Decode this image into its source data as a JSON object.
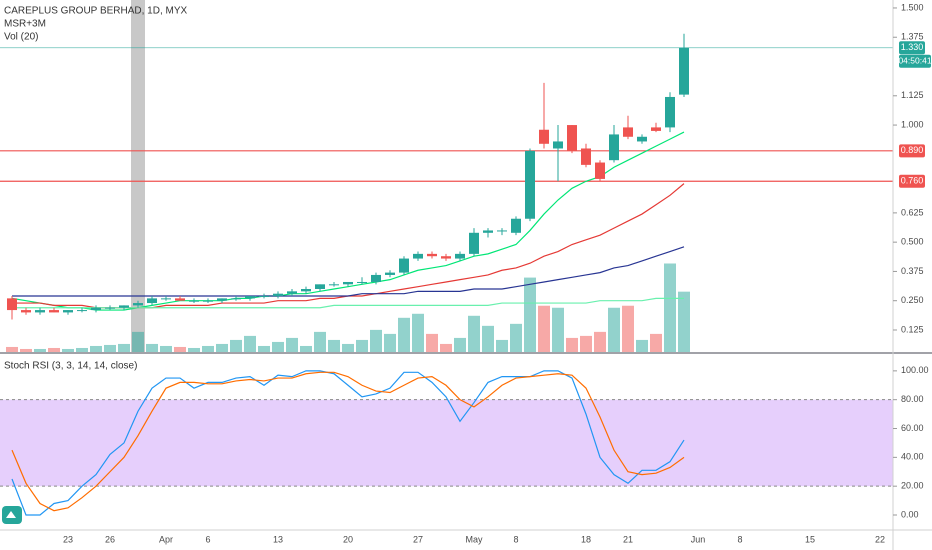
{
  "chart_data": [
    {
      "type": "candlestick",
      "title": "CAREPLUS GROUP BERHAD, 1D, MYX",
      "indicators": [
        "MSR+3M",
        "Vol (20)"
      ],
      "open": [
        0.26,
        0.21,
        0.2,
        0.21,
        0.2,
        0.21,
        0.21,
        0.22,
        0.22,
        0.23,
        0.24,
        0.26,
        0.26,
        0.25,
        0.25,
        0.25,
        0.26,
        0.26,
        0.27,
        0.27,
        0.28,
        0.29,
        0.3,
        0.32,
        0.32,
        0.33,
        0.33,
        0.36,
        0.37,
        0.43,
        0.45,
        0.44,
        0.43,
        0.45,
        0.54,
        0.55,
        0.54,
        0.6,
        0.98,
        0.9,
        1.0,
        0.9,
        0.84,
        0.85,
        0.99,
        0.93,
        0.99,
        0.99,
        1.13
      ],
      "high": [
        0.27,
        0.22,
        0.22,
        0.22,
        0.21,
        0.22,
        0.23,
        0.23,
        0.23,
        0.25,
        0.27,
        0.27,
        0.27,
        0.26,
        0.26,
        0.26,
        0.27,
        0.27,
        0.28,
        0.29,
        0.3,
        0.31,
        0.32,
        0.33,
        0.33,
        0.35,
        0.37,
        0.38,
        0.44,
        0.46,
        0.46,
        0.45,
        0.46,
        0.56,
        0.56,
        0.56,
        0.61,
        0.9,
        1.18,
        1.0,
        1.0,
        0.92,
        0.85,
        1.0,
        1.04,
        0.96,
        1.01,
        1.14,
        1.39
      ],
      "low": [
        0.17,
        0.19,
        0.19,
        0.2,
        0.19,
        0.2,
        0.2,
        0.21,
        0.21,
        0.22,
        0.23,
        0.25,
        0.25,
        0.24,
        0.24,
        0.24,
        0.25,
        0.25,
        0.26,
        0.26,
        0.27,
        0.28,
        0.29,
        0.31,
        0.31,
        0.32,
        0.32,
        0.35,
        0.36,
        0.42,
        0.43,
        0.42,
        0.42,
        0.44,
        0.52,
        0.53,
        0.53,
        0.59,
        0.9,
        0.76,
        0.88,
        0.82,
        0.76,
        0.84,
        0.94,
        0.92,
        0.97,
        0.97,
        1.12
      ],
      "close": [
        0.21,
        0.2,
        0.21,
        0.2,
        0.21,
        0.21,
        0.22,
        0.22,
        0.23,
        0.24,
        0.26,
        0.26,
        0.25,
        0.25,
        0.25,
        0.26,
        0.26,
        0.27,
        0.27,
        0.28,
        0.29,
        0.3,
        0.32,
        0.32,
        0.33,
        0.33,
        0.36,
        0.37,
        0.43,
        0.45,
        0.44,
        0.43,
        0.45,
        0.54,
        0.55,
        0.55,
        0.6,
        0.89,
        0.92,
        0.93,
        0.89,
        0.83,
        0.77,
        0.96,
        0.95,
        0.95,
        0.975,
        1.12,
        1.33
      ],
      "up_color": "#26a69a",
      "down_color": "#ef5350",
      "volume": [
        5,
        3,
        3,
        4,
        3,
        4,
        6,
        7,
        8,
        20,
        8,
        6,
        5,
        4,
        6,
        8,
        12,
        16,
        6,
        10,
        14,
        6,
        20,
        12,
        8,
        12,
        22,
        18,
        34,
        38,
        18,
        8,
        14,
        36,
        26,
        12,
        28,
        74,
        46,
        44,
        14,
        16,
        20,
        44,
        46,
        12,
        18,
        88,
        60
      ],
      "volume_ylim": [
        0,
        350
      ],
      "overlays": [
        {
          "color": "#00e676",
          "values": [
            0.26,
            0.25,
            0.24,
            0.23,
            0.22,
            0.22,
            0.21,
            0.21,
            0.21,
            0.22,
            0.23,
            0.24,
            0.25,
            0.25,
            0.25,
            0.25,
            0.26,
            0.26,
            0.27,
            0.27,
            0.28,
            0.28,
            0.29,
            0.3,
            0.31,
            0.32,
            0.33,
            0.34,
            0.36,
            0.38,
            0.39,
            0.4,
            0.42,
            0.44,
            0.45,
            0.47,
            0.49,
            0.55,
            0.62,
            0.68,
            0.73,
            0.76,
            0.78,
            0.82,
            0.85,
            0.88,
            0.91,
            0.94,
            0.97
          ]
        },
        {
          "color": "#e53935",
          "values": [
            0.24,
            0.24,
            0.24,
            0.23,
            0.23,
            0.23,
            0.22,
            0.22,
            0.22,
            0.22,
            0.22,
            0.23,
            0.23,
            0.23,
            0.23,
            0.24,
            0.24,
            0.24,
            0.24,
            0.25,
            0.25,
            0.25,
            0.26,
            0.26,
            0.27,
            0.27,
            0.28,
            0.29,
            0.3,
            0.31,
            0.32,
            0.33,
            0.34,
            0.35,
            0.36,
            0.38,
            0.39,
            0.41,
            0.44,
            0.46,
            0.49,
            0.51,
            0.53,
            0.56,
            0.59,
            0.62,
            0.66,
            0.7,
            0.75
          ]
        },
        {
          "color": "#283593",
          "values": [
            0.27,
            0.27,
            0.27,
            0.27,
            0.27,
            0.27,
            0.27,
            0.27,
            0.27,
            0.27,
            0.27,
            0.27,
            0.27,
            0.27,
            0.27,
            0.27,
            0.27,
            0.27,
            0.27,
            0.27,
            0.27,
            0.27,
            0.27,
            0.27,
            0.27,
            0.28,
            0.28,
            0.28,
            0.28,
            0.29,
            0.29,
            0.29,
            0.29,
            0.3,
            0.3,
            0.3,
            0.31,
            0.32,
            0.33,
            0.34,
            0.35,
            0.36,
            0.37,
            0.39,
            0.4,
            0.42,
            0.44,
            0.46,
            0.48
          ]
        },
        {
          "color": "#69f0ae",
          "values": [
            0.22,
            0.22,
            0.22,
            0.22,
            0.22,
            0.22,
            0.22,
            0.22,
            0.22,
            0.22,
            0.22,
            0.22,
            0.22,
            0.22,
            0.22,
            0.22,
            0.22,
            0.22,
            0.22,
            0.22,
            0.22,
            0.22,
            0.22,
            0.23,
            0.23,
            0.23,
            0.23,
            0.23,
            0.23,
            0.23,
            0.23,
            0.23,
            0.23,
            0.23,
            0.23,
            0.24,
            0.24,
            0.24,
            0.24,
            0.24,
            0.24,
            0.24,
            0.25,
            0.25,
            0.25,
            0.25,
            0.26,
            0.26,
            0.26
          ]
        }
      ],
      "ylim": [
        0.031,
        1.534
      ],
      "yticks": [
        {
          "value": 1.5,
          "label": "1.500"
        },
        {
          "value": 1.375,
          "label": "1.375"
        },
        {
          "value": 1.125,
          "label": "1.125"
        },
        {
          "value": 1.0,
          "label": "1.000"
        },
        {
          "value": 0.625,
          "label": "0.625"
        },
        {
          "value": 0.5,
          "label": "0.500"
        },
        {
          "value": 0.375,
          "label": "0.375"
        },
        {
          "value": 0.25,
          "label": "0.250"
        },
        {
          "value": 0.125,
          "label": "0.125"
        }
      ],
      "price_lines": [
        {
          "value": 1.33,
          "label": "1.330",
          "color": "#26a69a"
        },
        {
          "value": 0.89,
          "label": "0.890",
          "color": "#ef5350"
        },
        {
          "value": 0.76,
          "label": "0.760",
          "color": "#ef5350"
        }
      ],
      "countdown": "04:50:41"
    },
    {
      "type": "line",
      "title": "Stoch RSI (3, 3, 14, 14, close)",
      "categories": [
        null,
        null,
        null,
        null,
        "23",
        null,
        null,
        "26",
        null,
        null,
        null,
        "Apr",
        null,
        null,
        "6",
        null,
        null,
        null,
        null,
        "13",
        null,
        null,
        null,
        null,
        "20",
        null,
        null,
        null,
        null,
        "27",
        null,
        null,
        null,
        "May",
        null,
        null,
        "8",
        null,
        null,
        null,
        null,
        "18",
        null,
        null,
        "21",
        null,
        null,
        null,
        null,
        "Jun",
        null,
        null,
        "8",
        null,
        null,
        null,
        null,
        "15",
        null,
        null,
        null,
        null,
        "22"
      ],
      "series": [
        {
          "color": "#2196f3",
          "values": [
            25,
            0,
            0,
            8,
            10,
            20,
            28,
            42,
            50,
            72,
            88,
            95,
            95,
            88,
            92,
            92,
            95,
            96,
            90,
            97,
            96,
            100,
            100,
            98,
            90,
            82,
            84,
            88,
            99,
            99,
            92,
            82,
            65,
            78,
            92,
            96,
            96,
            96,
            100,
            100,
            95,
            70,
            40,
            28,
            22,
            31,
            31,
            37,
            52,
            null,
            null,
            null,
            null,
            null,
            null,
            null,
            null,
            null,
            null,
            null,
            null,
            null,
            null
          ]
        },
        {
          "color": "#ff6d00",
          "values": [
            45,
            22,
            8,
            3,
            5,
            12,
            20,
            30,
            40,
            55,
            72,
            88,
            92,
            92,
            91,
            91,
            93,
            94,
            93,
            95,
            95,
            98,
            99,
            99,
            96,
            90,
            86,
            85,
            90,
            95,
            96,
            90,
            80,
            75,
            82,
            90,
            95,
            96,
            97,
            98,
            97,
            88,
            68,
            45,
            30,
            28,
            29,
            33,
            40,
            null,
            null,
            null,
            null,
            null,
            null,
            null,
            null,
            null,
            null,
            null,
            null,
            null,
            null
          ]
        }
      ],
      "band": [
        20,
        80
      ],
      "band_color": "#e6cffc",
      "ylim": [
        -10.4,
        111
      ],
      "yticks": [
        {
          "value": 100,
          "label": "100.00"
        },
        {
          "value": 80,
          "label": "80.00"
        },
        {
          "value": 60,
          "label": "60.00"
        },
        {
          "value": 40,
          "label": "40.00"
        },
        {
          "value": 20,
          "label": "20.00"
        },
        {
          "value": 0,
          "label": "0.00"
        }
      ]
    }
  ]
}
